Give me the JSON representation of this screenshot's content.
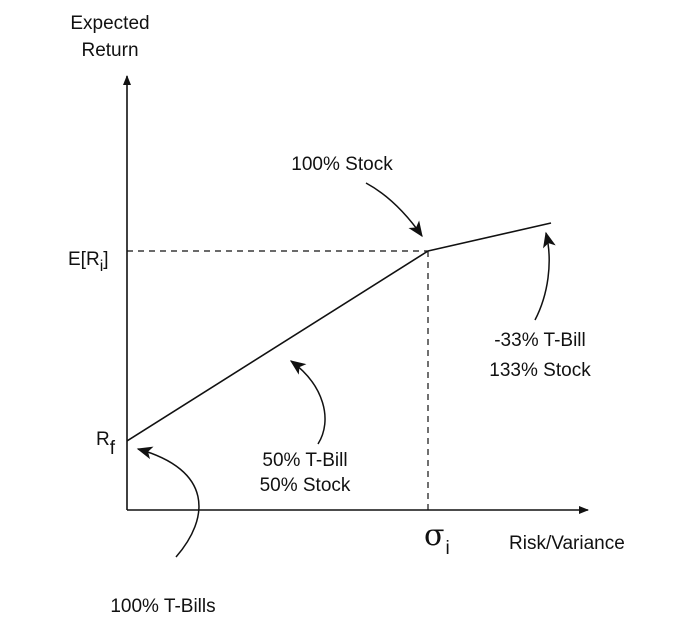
{
  "axes": {
    "y_label_line1": "Expected",
    "y_label_line2": "Return",
    "x_label": "Risk/Variance"
  },
  "markers": {
    "expected_return_prefix": "E[R",
    "expected_return_sub": "i",
    "expected_return_suffix": "]",
    "risk_free_main": "R",
    "risk_free_sub": "f",
    "sigma_main": "σ",
    "sigma_sub": "i"
  },
  "annotations": {
    "full_stock": "100% Stock",
    "levered_line1": "-33% T-Bill",
    "levered_line2": "133% Stock",
    "half_line1": "50% T-Bill",
    "half_line2": "50% Stock",
    "all_tbills": "100% T-Bills"
  }
}
